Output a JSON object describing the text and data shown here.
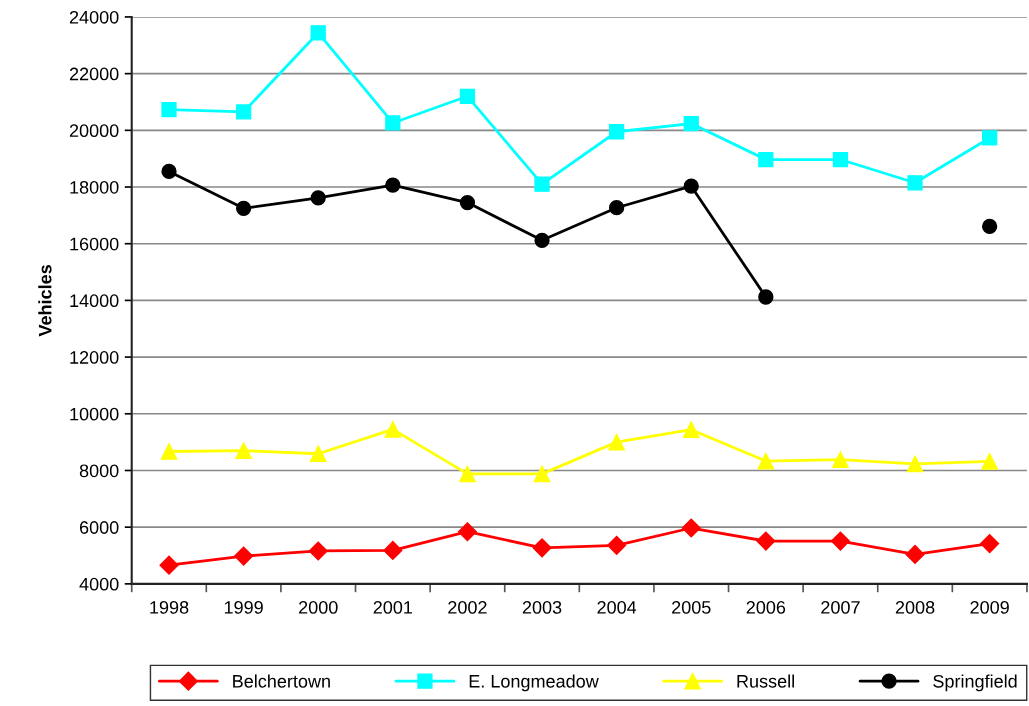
{
  "chart_data": {
    "type": "line",
    "ylabel": "Vehicles",
    "categories": [
      "1998",
      "1999",
      "2000",
      "2001",
      "2002",
      "2003",
      "2004",
      "2005",
      "2006",
      "2007",
      "2008",
      "2009"
    ],
    "ylim": [
      4000,
      24000
    ],
    "yticks": [
      4000,
      6000,
      8000,
      10000,
      12000,
      14000,
      16000,
      18000,
      20000,
      22000,
      24000
    ],
    "grid": "y",
    "legend": "bottom",
    "line_style": "solid",
    "series": [
      {
        "name": "Belchertown",
        "color": "#ff0000",
        "marker": "diamond",
        "values": [
          4660,
          4980,
          5160,
          5180,
          5840,
          5270,
          5360,
          5970,
          5510,
          5510,
          5040,
          5420
        ]
      },
      {
        "name": "E. Longmeadow",
        "color": "#00ffff",
        "marker": "square",
        "values": [
          20730,
          20650,
          23440,
          20260,
          21200,
          18100,
          19950,
          20240,
          18970,
          18970,
          18150,
          19730
        ]
      },
      {
        "name": "Russell",
        "color": "#ffff00",
        "marker": "triangle",
        "values": [
          8670,
          8700,
          8590,
          9450,
          7880,
          7880,
          9000,
          9440,
          8330,
          8380,
          8230,
          8320
        ]
      },
      {
        "name": "Springfield",
        "color": "#000000",
        "marker": "circle",
        "values": [
          18550,
          17250,
          17620,
          18070,
          17450,
          16120,
          17270,
          18030,
          14120,
          null,
          null,
          16610
        ]
      }
    ]
  }
}
